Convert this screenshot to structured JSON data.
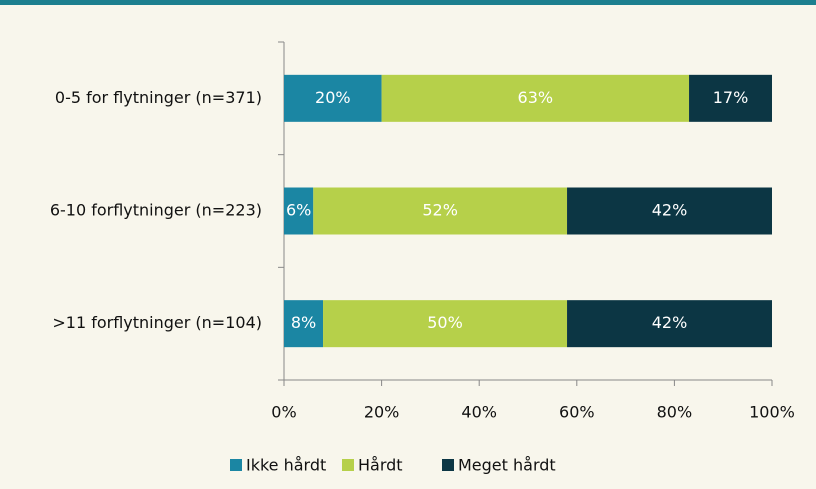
{
  "chart_data": {
    "type": "stacked_barh",
    "categories": [
      "0-5 for flytninger (n=371)",
      "6-10 forflytninger (n=223)",
      ">11 forflytninger (n=104)"
    ],
    "series": [
      {
        "name": "Ikke hårdt",
        "color": "#1b86a3",
        "values": [
          20,
          6,
          8
        ],
        "value_labels": [
          "20%",
          "6%",
          "8%"
        ]
      },
      {
        "name": "Hårdt",
        "color": "#b6d04a",
        "values": [
          63,
          52,
          50
        ],
        "value_labels": [
          "63%",
          "52%",
          "50%"
        ]
      },
      {
        "name": "Meget hårdt",
        "color": "#0c3644",
        "values": [
          17,
          42,
          42
        ],
        "value_labels": [
          "17%",
          "42%",
          "42%"
        ]
      }
    ],
    "xlim": [
      0,
      100
    ],
    "xticks": [
      {
        "value": 0,
        "label": "0%"
      },
      {
        "value": 20,
        "label": "20%"
      },
      {
        "value": 40,
        "label": "40%"
      },
      {
        "value": 60,
        "label": "60%"
      },
      {
        "value": 80,
        "label": "80%"
      },
      {
        "value": 100,
        "label": "100%"
      }
    ],
    "legend": "bottom"
  }
}
